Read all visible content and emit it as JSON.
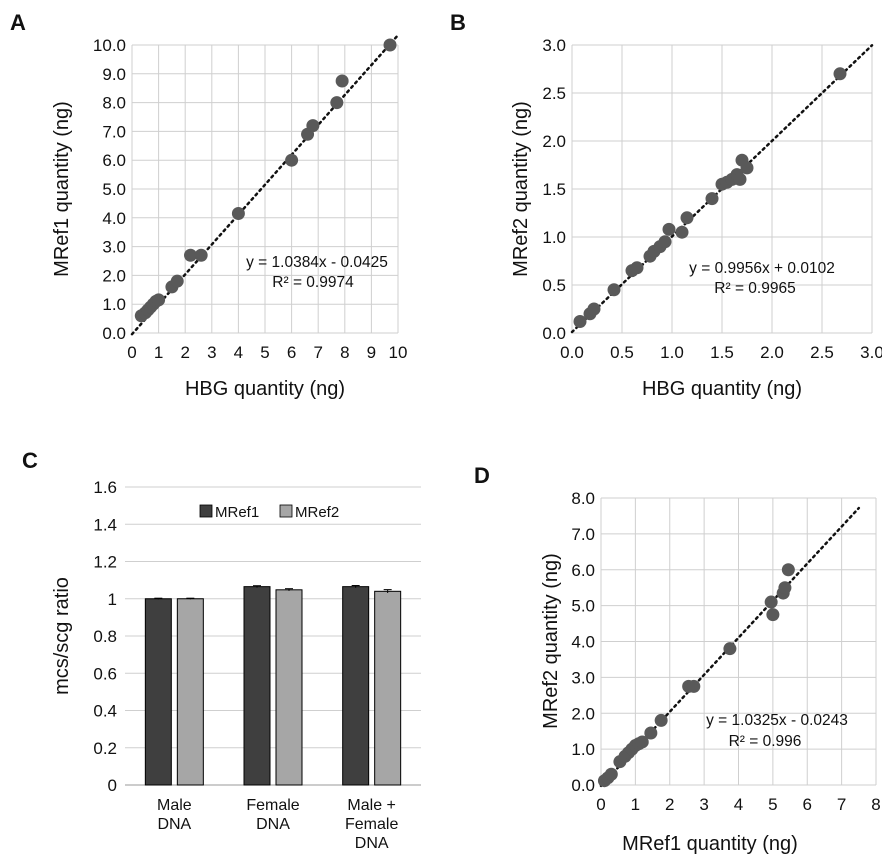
{
  "panels": {
    "A": {
      "letter": "A",
      "chart_data": {
        "type": "scatter",
        "xlabel": "HBG quantity (ng)",
        "ylabel": "MRef1 quantity (ng)",
        "xlim": [
          0,
          10
        ],
        "ylim": [
          0,
          10
        ],
        "x_ticks": [
          "0",
          "1",
          "2",
          "3",
          "4",
          "5",
          "6",
          "7",
          "8",
          "9",
          "10"
        ],
        "y_ticks": [
          "0.0",
          "1.0",
          "2.0",
          "3.0",
          "4.0",
          "5.0",
          "6.0",
          "7.0",
          "8.0",
          "9.0",
          "10.0"
        ],
        "grid": true,
        "points": [
          [
            0.35,
            0.6
          ],
          [
            0.5,
            0.7
          ],
          [
            0.6,
            0.8
          ],
          [
            0.7,
            0.9
          ],
          [
            0.8,
            1.0
          ],
          [
            0.9,
            1.1
          ],
          [
            1.0,
            1.15
          ],
          [
            1.5,
            1.6
          ],
          [
            1.7,
            1.8
          ],
          [
            2.2,
            2.7
          ],
          [
            2.6,
            2.7
          ],
          [
            4.0,
            4.15
          ],
          [
            6.0,
            6.0
          ],
          [
            6.6,
            6.9
          ],
          [
            6.8,
            7.2
          ],
          [
            7.7,
            8.0
          ],
          [
            7.9,
            8.75
          ],
          [
            9.7,
            10.0
          ]
        ],
        "trendline": {
          "slope": 1.0384,
          "intercept": -0.0425,
          "style": "dotted",
          "x_range": [
            0,
            10
          ]
        },
        "equation": "y = 1.0384x - 0.0425",
        "r2": "R² = 0.9974"
      }
    },
    "B": {
      "letter": "B",
      "chart_data": {
        "type": "scatter",
        "xlabel": "HBG quantity (ng)",
        "ylabel": "MRef2 quantity (ng)",
        "xlim": [
          0,
          3
        ],
        "ylim": [
          0,
          3
        ],
        "x_ticks": [
          "0.0",
          "0.5",
          "1.0",
          "1.5",
          "2.0",
          "2.5",
          "3.0"
        ],
        "y_ticks": [
          "0.0",
          "0.5",
          "1.0",
          "1.5",
          "2.0",
          "2.5",
          "3.0"
        ],
        "grid": true,
        "points": [
          [
            0.08,
            0.12
          ],
          [
            0.18,
            0.2
          ],
          [
            0.22,
            0.25
          ],
          [
            0.42,
            0.45
          ],
          [
            0.6,
            0.65
          ],
          [
            0.65,
            0.68
          ],
          [
            0.78,
            0.8
          ],
          [
            0.82,
            0.85
          ],
          [
            0.88,
            0.9
          ],
          [
            0.93,
            0.95
          ],
          [
            0.97,
            1.08
          ],
          [
            1.1,
            1.05
          ],
          [
            1.15,
            1.2
          ],
          [
            1.4,
            1.4
          ],
          [
            1.5,
            1.55
          ],
          [
            1.55,
            1.57
          ],
          [
            1.6,
            1.6
          ],
          [
            1.65,
            1.65
          ],
          [
            1.68,
            1.6
          ],
          [
            1.7,
            1.8
          ],
          [
            1.75,
            1.72
          ],
          [
            2.68,
            2.7
          ]
        ],
        "trendline": {
          "slope": 0.9956,
          "intercept": 0.0102,
          "style": "dotted",
          "x_range": [
            0,
            3
          ]
        },
        "equation": "y = 0.9956x + 0.0102",
        "r2": "R² = 0.9965"
      }
    },
    "C": {
      "letter": "C",
      "chart_data": {
        "type": "bar",
        "ylabel": "mcs/scg ratio",
        "ylim": [
          0,
          1.6
        ],
        "y_ticks": [
          "0",
          "0.2",
          "0.4",
          "0.6",
          "0.8",
          "1",
          "1.2",
          "1.4",
          "1.6"
        ],
        "grid": true,
        "legend_position": "top-center",
        "categories": [
          [
            "Male",
            "DNA"
          ],
          [
            "Female",
            "DNA"
          ],
          [
            "Male +",
            "Female",
            "DNA"
          ]
        ],
        "series": [
          {
            "name": "MRef1",
            "color": "#3f3f3f",
            "values": [
              1.0,
              1.065,
              1.065
            ],
            "errors": [
              0.003,
              0.005,
              0.006
            ]
          },
          {
            "name": "MRef2",
            "color": "#a6a6a6",
            "values": [
              1.0,
              1.048,
              1.04
            ],
            "errors": [
              0.003,
              0.006,
              0.009
            ]
          }
        ]
      }
    },
    "D": {
      "letter": "D",
      "chart_data": {
        "type": "scatter",
        "xlabel": "MRef1 quantity (ng)",
        "ylabel": "MRef2 quantity (ng)",
        "xlim": [
          0,
          8
        ],
        "ylim": [
          0,
          8
        ],
        "x_ticks": [
          "0",
          "1",
          "2",
          "3",
          "4",
          "5",
          "6",
          "7",
          "8"
        ],
        "y_ticks": [
          "0.0",
          "1.0",
          "2.0",
          "3.0",
          "4.0",
          "5.0",
          "6.0",
          "7.0",
          "8.0"
        ],
        "grid": true,
        "points": [
          [
            0.1,
            0.12
          ],
          [
            0.2,
            0.2
          ],
          [
            0.3,
            0.3
          ],
          [
            0.55,
            0.65
          ],
          [
            0.7,
            0.8
          ],
          [
            0.8,
            0.9
          ],
          [
            0.9,
            1.0
          ],
          [
            1.0,
            1.1
          ],
          [
            1.1,
            1.15
          ],
          [
            1.2,
            1.2
          ],
          [
            1.45,
            1.45
          ],
          [
            1.75,
            1.8
          ],
          [
            2.55,
            2.75
          ],
          [
            2.7,
            2.75
          ],
          [
            3.75,
            3.8
          ],
          [
            4.95,
            5.1
          ],
          [
            5.0,
            4.75
          ],
          [
            5.3,
            5.35
          ],
          [
            5.35,
            5.5
          ],
          [
            5.45,
            6.0
          ]
        ],
        "trendline": {
          "slope": 1.0325,
          "intercept": -0.0243,
          "style": "dotted",
          "x_range": [
            0,
            7.5
          ]
        },
        "equation": "y = 1.0325x - 0.0243",
        "r2": "R² = 0.996"
      }
    }
  }
}
